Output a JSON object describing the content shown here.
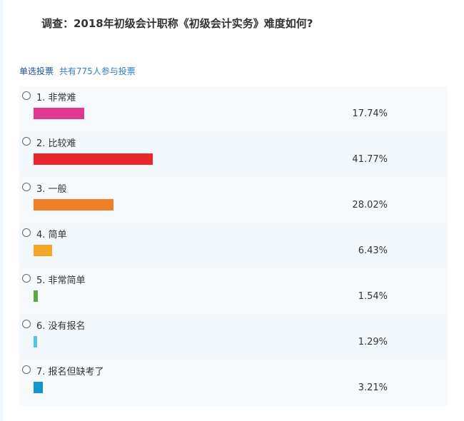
{
  "poll": {
    "title": "调查：2018年初级会计职称《初级会计实务》难度如何?",
    "kind": "单选投票",
    "participants": "共有775人参与投票",
    "options": [
      {
        "label": "1. 非常难",
        "percent_text": "17.74%",
        "percent": 17.74,
        "color": "#e0388f"
      },
      {
        "label": "2. 比较难",
        "percent_text": "41.77%",
        "percent": 41.77,
        "color": "#e8262c"
      },
      {
        "label": "3. 一般",
        "percent_text": "28.02%",
        "percent": 28.02,
        "color": "#f07e26"
      },
      {
        "label": "4. 简单",
        "percent_text": "6.43%",
        "percent": 6.43,
        "color": "#f4a628"
      },
      {
        "label": "5. 非常简单",
        "percent_text": "1.54%",
        "percent": 1.54,
        "color": "#5aa846"
      },
      {
        "label": "6. 没有报名",
        "percent_text": "1.29%",
        "percent": 1.29,
        "color": "#58c3ea"
      },
      {
        "label": "7. 报名但缺考了",
        "percent_text": "3.21%",
        "percent": 3.21,
        "color": "#1397c9"
      }
    ]
  }
}
